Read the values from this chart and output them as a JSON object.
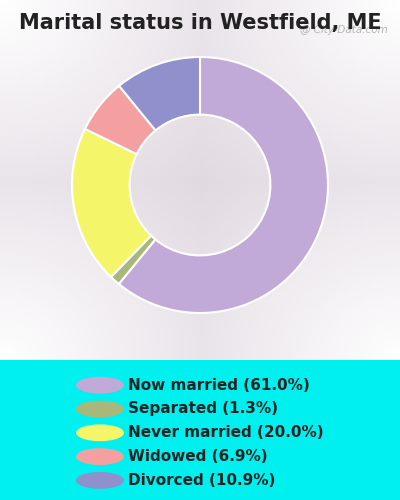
{
  "title": "Marital status in Westfield, ME",
  "slices": [
    61.0,
    1.3,
    20.0,
    6.9,
    10.9
  ],
  "labels": [
    "Now married (61.0%)",
    "Separated (1.3%)",
    "Never married (20.0%)",
    "Widowed (6.9%)",
    "Divorced (10.9%)"
  ],
  "colors": [
    "#c2aad8",
    "#a8b87a",
    "#f5f56a",
    "#f5a0a0",
    "#9090cc"
  ],
  "start_angle": 90,
  "bg_cyan": "#00efef",
  "bg_chart_color": "#d8eed8",
  "title_fontsize": 15,
  "legend_fontsize": 11,
  "watermark": "City-Data.com",
  "donut_width": 0.45
}
